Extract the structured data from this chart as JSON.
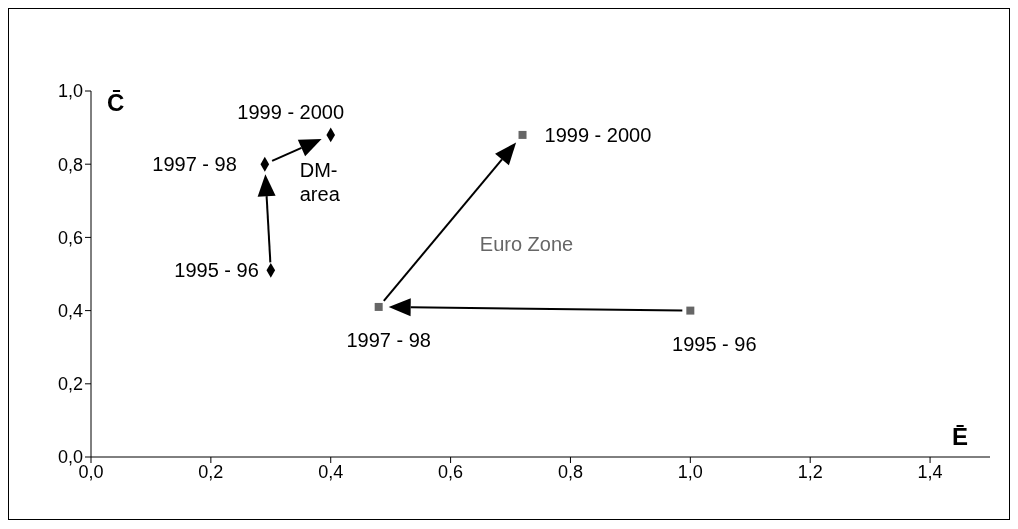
{
  "chart_data": {
    "type": "scatter",
    "xlabel": "Ē",
    "ylabel": "C̄",
    "xlim": [
      0,
      1.5
    ],
    "ylim": [
      0,
      1
    ],
    "xticks": [
      {
        "value": 0,
        "label": "0,0"
      },
      {
        "value": 0.2,
        "label": "0,2"
      },
      {
        "value": 0.4,
        "label": "0,4"
      },
      {
        "value": 0.6,
        "label": "0,6"
      },
      {
        "value": 0.8,
        "label": "0,8"
      },
      {
        "value": 1.0,
        "label": "1,0"
      },
      {
        "value": 1.2,
        "label": "1,2"
      },
      {
        "value": 1.4,
        "label": "1,4"
      }
    ],
    "yticks": [
      {
        "value": 0,
        "label": "0,0"
      },
      {
        "value": 0.2,
        "label": "0,2"
      },
      {
        "value": 0.4,
        "label": "0,4"
      },
      {
        "value": 0.6,
        "label": "0,6"
      },
      {
        "value": 0.8,
        "label": "0,8"
      },
      {
        "value": 1.0,
        "label": "1,0"
      }
    ],
    "grid": false,
    "series": [
      {
        "name": "DM-area",
        "color": "#000000",
        "marker": "diamond",
        "x": [
          0.3,
          0.29,
          0.4
        ],
        "values": [
          0.51,
          0.8,
          0.88
        ]
      },
      {
        "name": "Euro Zone",
        "color": "#666666",
        "marker": "square",
        "x": [
          1.0,
          0.48,
          0.72
        ],
        "values": [
          0.4,
          0.41,
          0.88
        ]
      }
    ],
    "annotations": [
      {
        "text": "1995 - 96",
        "x": 0.3,
        "y": 0.51
      },
      {
        "text": "1997 - 98",
        "x": 0.29,
        "y": 0.8
      },
      {
        "text": "1999 - 2000",
        "x": 0.4,
        "y": 0.88
      },
      {
        "text": "1995 - 96",
        "x": 1.0,
        "y": 0.4
      },
      {
        "text": "1997 - 98",
        "x": 0.48,
        "y": 0.41
      },
      {
        "text": "1999 - 2000",
        "x": 0.72,
        "y": 0.88
      }
    ]
  }
}
